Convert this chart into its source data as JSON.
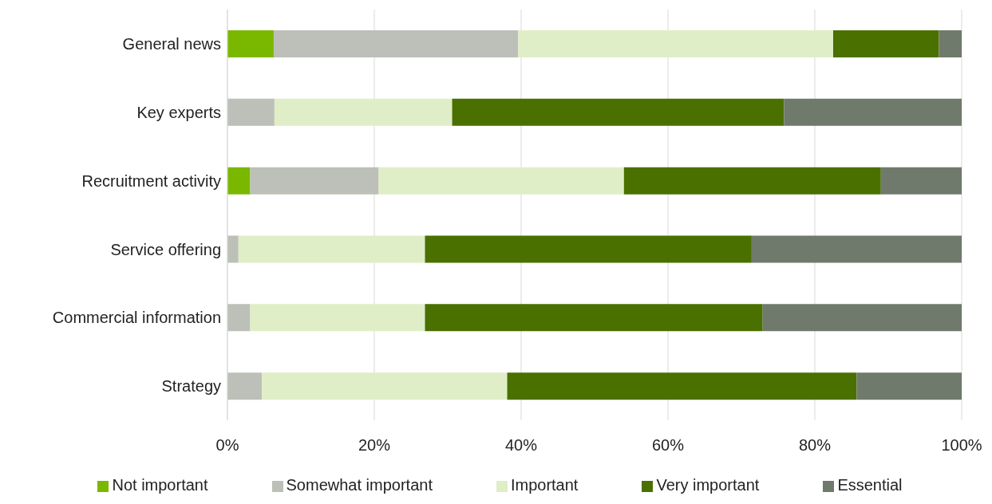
{
  "chart_data": {
    "type": "bar",
    "orientation": "horizontal",
    "stacked": true,
    "categories": [
      "General news",
      "Key experts",
      "Recruitment activity",
      "Service offering",
      "Commercial information",
      "Strategy"
    ],
    "series": [
      {
        "name": "Not important",
        "color": "#7ab800",
        "values": [
          6.3,
          0,
          3.1,
          0,
          0,
          0
        ]
      },
      {
        "name": "Somewhat important",
        "color": "#bcc0b8",
        "values": [
          33.3,
          6.4,
          17.5,
          1.5,
          3.1,
          4.7
        ]
      },
      {
        "name": "Important",
        "color": "#dfeec6",
        "values": [
          42.9,
          24.2,
          33.4,
          25.4,
          23.8,
          33.4
        ]
      },
      {
        "name": "Very important",
        "color": "#4a7000",
        "values": [
          14.4,
          45.2,
          35.0,
          44.5,
          46.0,
          47.6
        ]
      },
      {
        "name": "Essential",
        "color": "#6f7a6c",
        "values": [
          3.1,
          24.2,
          11.0,
          28.6,
          27.1,
          14.3
        ]
      }
    ],
    "xlim": [
      0,
      100
    ],
    "xticks": [
      {
        "value": 0,
        "label": "0%"
      },
      {
        "value": 20,
        "label": "20%"
      },
      {
        "value": 40,
        "label": "40%"
      },
      {
        "value": 60,
        "label": "60%"
      },
      {
        "value": 80,
        "label": "80%"
      },
      {
        "value": 100,
        "label": "100%"
      }
    ],
    "grid": "x",
    "legend": "bottom"
  }
}
